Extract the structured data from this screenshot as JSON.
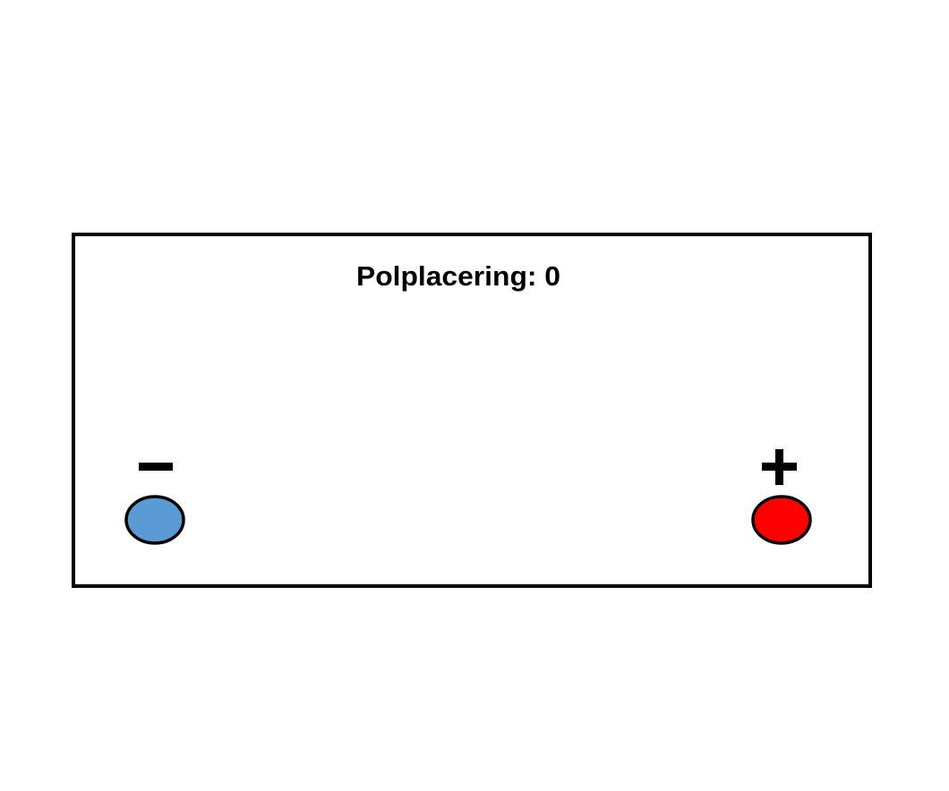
{
  "diagram": {
    "title": "Polplacering: 0",
    "negative_terminal": {
      "symbol": "−",
      "color": "#5b9bd5"
    },
    "positive_terminal": {
      "symbol": "+",
      "color": "#ff0000"
    },
    "outline_color": "#000000"
  }
}
